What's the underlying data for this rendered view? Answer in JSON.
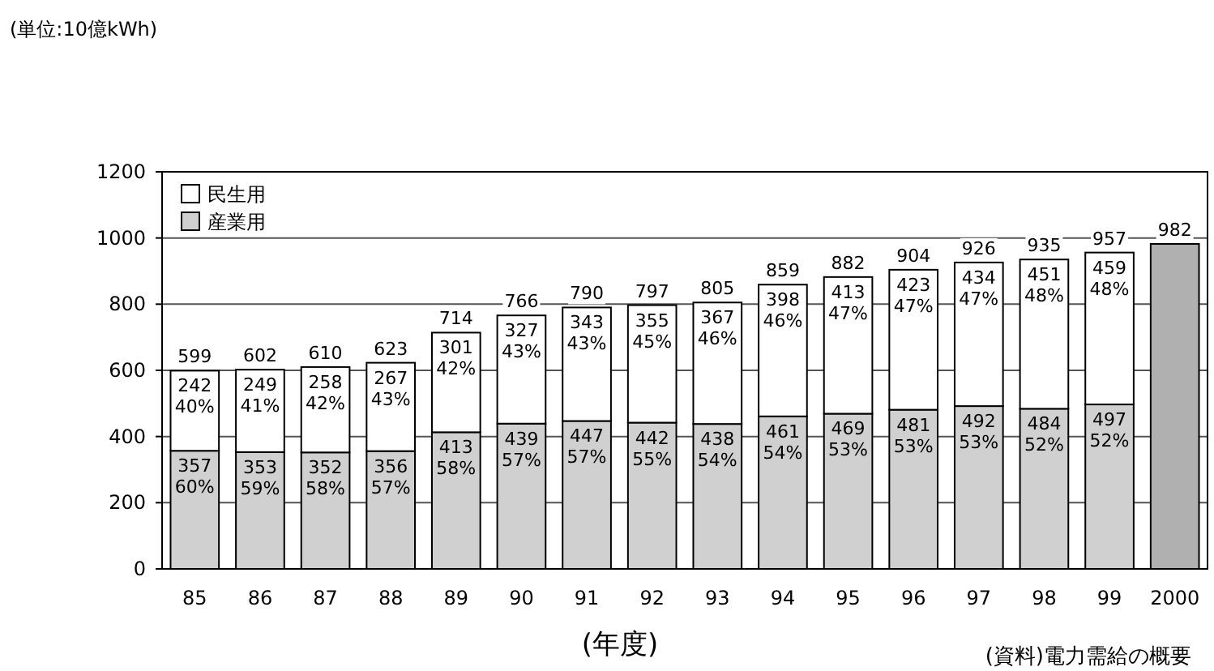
{
  "chart_data": {
    "type": "bar",
    "stacked": true,
    "xlabel": "(年度)",
    "annotations": [
      "(単位:10億kWh)",
      "(資料)電力需給の概要"
    ],
    "categories": [
      "85",
      "86",
      "87",
      "88",
      "89",
      "90",
      "91",
      "92",
      "93",
      "94",
      "95",
      "96",
      "97",
      "98",
      "99",
      "2000"
    ],
    "series": [
      {
        "name": "産業用",
        "color": "#d0d0d0",
        "values": [
          357,
          353,
          352,
          356,
          413,
          439,
          447,
          442,
          438,
          461,
          469,
          481,
          492,
          484,
          497,
          null
        ],
        "value_labels": [
          "357\n60%",
          "353\n59%",
          "352\n58%",
          "356\n57%",
          "413\n58%",
          "439\n57%",
          "447\n57%",
          "442\n55%",
          "438\n54%",
          "461\n54%",
          "469\n53%",
          "481\n53%",
          "492\n53%",
          "484\n52%",
          "497\n52%",
          null
        ]
      },
      {
        "name": "民生用",
        "color": "#ffffff",
        "values": [
          242,
          249,
          258,
          267,
          301,
          327,
          343,
          355,
          367,
          398,
          413,
          423,
          434,
          451,
          459,
          null
        ],
        "value_labels": [
          "242\n40%",
          "249\n41%",
          "258\n42%",
          "267\n43%",
          "301\n42%",
          "327\n43%",
          "343\n43%",
          "355\n45%",
          "367\n46%",
          "398\n46%",
          "413\n47%",
          "423\n47%",
          "434\n47%",
          "451\n48%",
          "459\n48%",
          null
        ]
      },
      {
        "color": "#b0b0b0",
        "values": [
          null,
          null,
          null,
          null,
          null,
          null,
          null,
          null,
          null,
          null,
          null,
          null,
          null,
          null,
          null,
          982
        ]
      }
    ],
    "totals": [
      "599",
      "602",
      "610",
      "623",
      "714",
      "766",
      "790",
      "797",
      "805",
      "859",
      "882",
      "904",
      "926",
      "935",
      "957",
      "982"
    ],
    "ylim": [
      0,
      1200
    ],
    "yticks": [
      0,
      200,
      400,
      600,
      800,
      1000,
      1200
    ],
    "grid": "y",
    "legend": "top left"
  }
}
